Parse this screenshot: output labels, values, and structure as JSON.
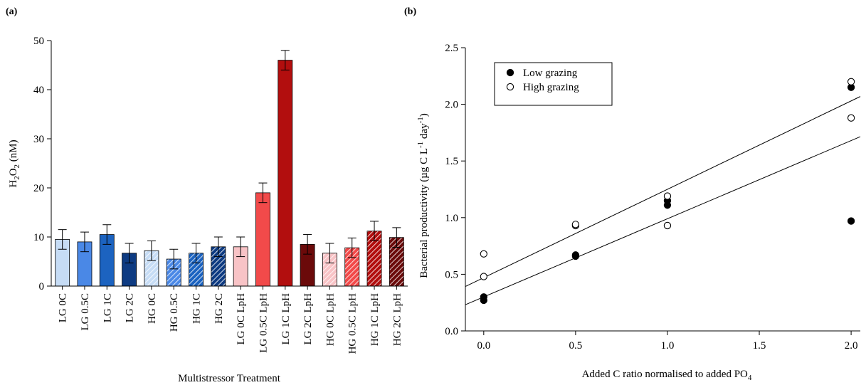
{
  "chart_data": [
    {
      "type": "bar",
      "panel_label": "(a)",
      "xlabel": "Multistressor Treatment",
      "ylabel": "H2O2 (nM)",
      "ylabel_parts": {
        "main": "H",
        "sub1": "2",
        "mid": "O",
        "sub2": "2",
        "unit": " (nM)"
      },
      "ylim": [
        0,
        50
      ],
      "yticks": [
        0,
        10,
        20,
        30,
        40,
        50
      ],
      "categories": [
        "LG 0C",
        "LG 0.5C",
        "LG 1C",
        "LG 2C",
        "HG 0C",
        "HG 0.5C",
        "HG 1C",
        "HG 2C",
        "LG 0C LpH",
        "LG 0.5C LpH",
        "LG 1C LpH",
        "LG 2C LpH",
        "HG 0C LpH",
        "HG 0.5C LpH",
        "HG 1C LpH",
        "HG 2C LpH"
      ],
      "values": [
        9.5,
        9.0,
        10.5,
        6.7,
        7.2,
        5.5,
        6.7,
        8.0,
        8.0,
        19.0,
        46.0,
        8.5,
        6.7,
        7.8,
        11.2,
        9.9
      ],
      "errors": [
        2.0,
        2.0,
        2.0,
        2.0,
        2.0,
        2.0,
        2.0,
        2.0,
        2.0,
        2.0,
        2.0,
        2.0,
        2.0,
        2.0,
        2.0,
        2.0
      ],
      "colors": [
        "#c6dcf5",
        "#4a88e6",
        "#1c63c0",
        "#0e3b82",
        "#c6dcf5",
        "#4a88e6",
        "#1c63c0",
        "#0e3b82",
        "#f8c3c6",
        "#f24a4a",
        "#b20e0e",
        "#6b0a0a",
        "#f8c3c6",
        "#f24a4a",
        "#b20e0e",
        "#6b0a0a"
      ],
      "hatched": [
        false,
        false,
        false,
        false,
        true,
        true,
        true,
        true,
        false,
        false,
        false,
        false,
        true,
        true,
        true,
        true
      ]
    },
    {
      "type": "scatter",
      "panel_label": "(b)",
      "xlabel": "Added C ratio normalised to added PO4",
      "xlabel_parts": {
        "main": "Added C ratio normalised to added PO",
        "sub": "4"
      },
      "ylabel": "Bacterial productivity (µg C L-1 day-1)",
      "ylabel_parts": {
        "a": "Bacterial productivity (µg C L",
        "sup1": "-1",
        "b": " day",
        "sup2": "-1",
        "c": ")"
      },
      "xlim": [
        -0.1,
        2.05
      ],
      "ylim": [
        0,
        2.5
      ],
      "xticks": [
        0.0,
        0.5,
        1.0,
        1.5,
        2.0
      ],
      "xtick_labels": [
        "0.0",
        "0.5",
        "1.0",
        "1.5",
        "2.0"
      ],
      "yticks": [
        0.0,
        0.5,
        1.0,
        1.5,
        2.0,
        2.5
      ],
      "ytick_labels": [
        "0.0",
        "0.5",
        "1.0",
        "1.5",
        "2.0",
        "2.5"
      ],
      "legend_position": "top-left",
      "series": [
        {
          "name": "Low grazing",
          "marker": "filled-circle",
          "color": "#000000",
          "x": [
            0,
            0,
            0.5,
            0.5,
            1,
            1,
            2,
            2
          ],
          "y": [
            0.27,
            0.3,
            0.66,
            0.67,
            1.11,
            1.15,
            0.97,
            2.15
          ],
          "fit_line": {
            "intercept": 0.3,
            "slope": 0.69
          }
        },
        {
          "name": "High grazing",
          "marker": "open-circle",
          "color": "#000000",
          "x": [
            0,
            0,
            0.5,
            0.5,
            1,
            1,
            2,
            2
          ],
          "y": [
            0.48,
            0.68,
            0.93,
            0.94,
            0.93,
            1.19,
            1.88,
            2.2
          ],
          "fit_line": {
            "intercept": 0.47,
            "slope": 0.78
          }
        }
      ]
    }
  ]
}
